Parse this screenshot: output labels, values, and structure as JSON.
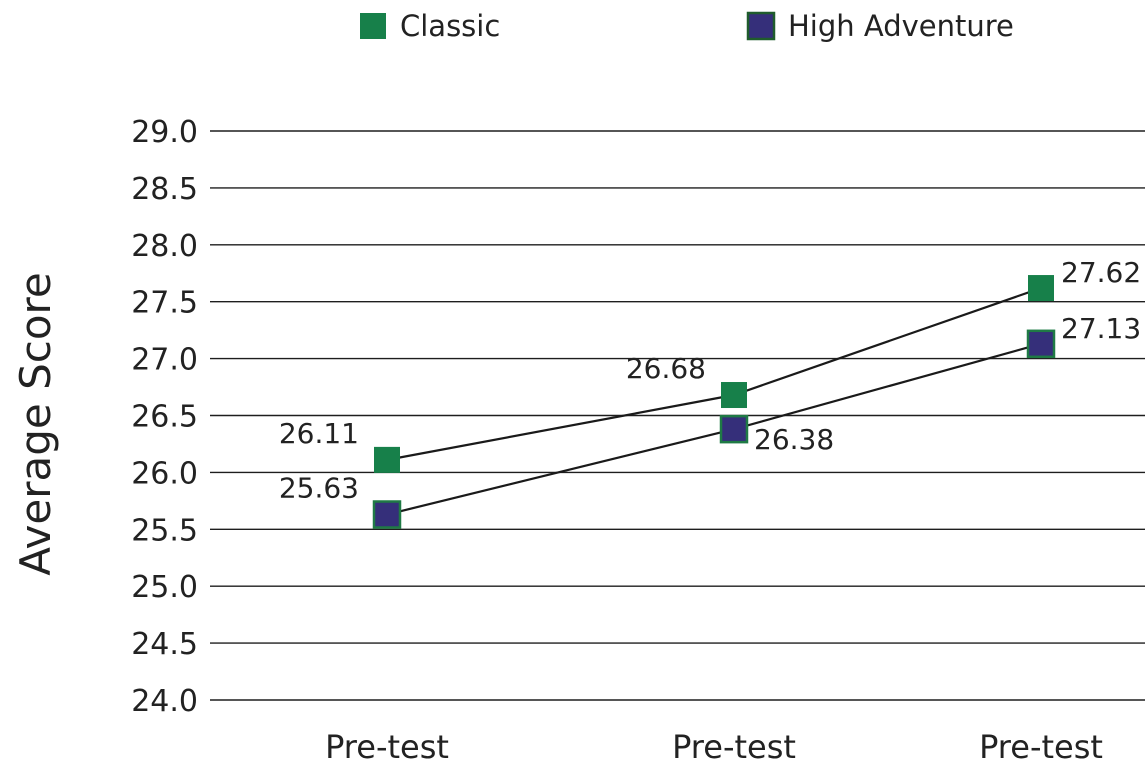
{
  "chart_data": {
    "type": "line",
    "title": "",
    "xlabel": "",
    "ylabel": "Average Score",
    "categories": [
      "Pre-test",
      "Pre-test",
      "Pre-test"
    ],
    "ylim": [
      24.0,
      29.0
    ],
    "yticks": [
      "24.0",
      "24.5",
      "25.0",
      "25.5",
      "26.0",
      "26.5",
      "27.0",
      "27.5",
      "28.0",
      "28.5",
      "29.0"
    ],
    "grid": true,
    "legend_position": "top",
    "series": [
      {
        "name": "Classic",
        "color": "#17804a",
        "values": [
          26.11,
          26.68,
          27.62
        ],
        "labels": [
          "26.11",
          "26.68",
          "27.62"
        ],
        "label_side": [
          "left",
          "left",
          "right"
        ]
      },
      {
        "name": "High Adventure",
        "color": "#352f7a",
        "values": [
          25.63,
          26.38,
          27.13
        ],
        "labels": [
          "25.63",
          "26.38",
          "27.13"
        ],
        "label_side": [
          "left",
          "right",
          "right"
        ]
      }
    ]
  }
}
